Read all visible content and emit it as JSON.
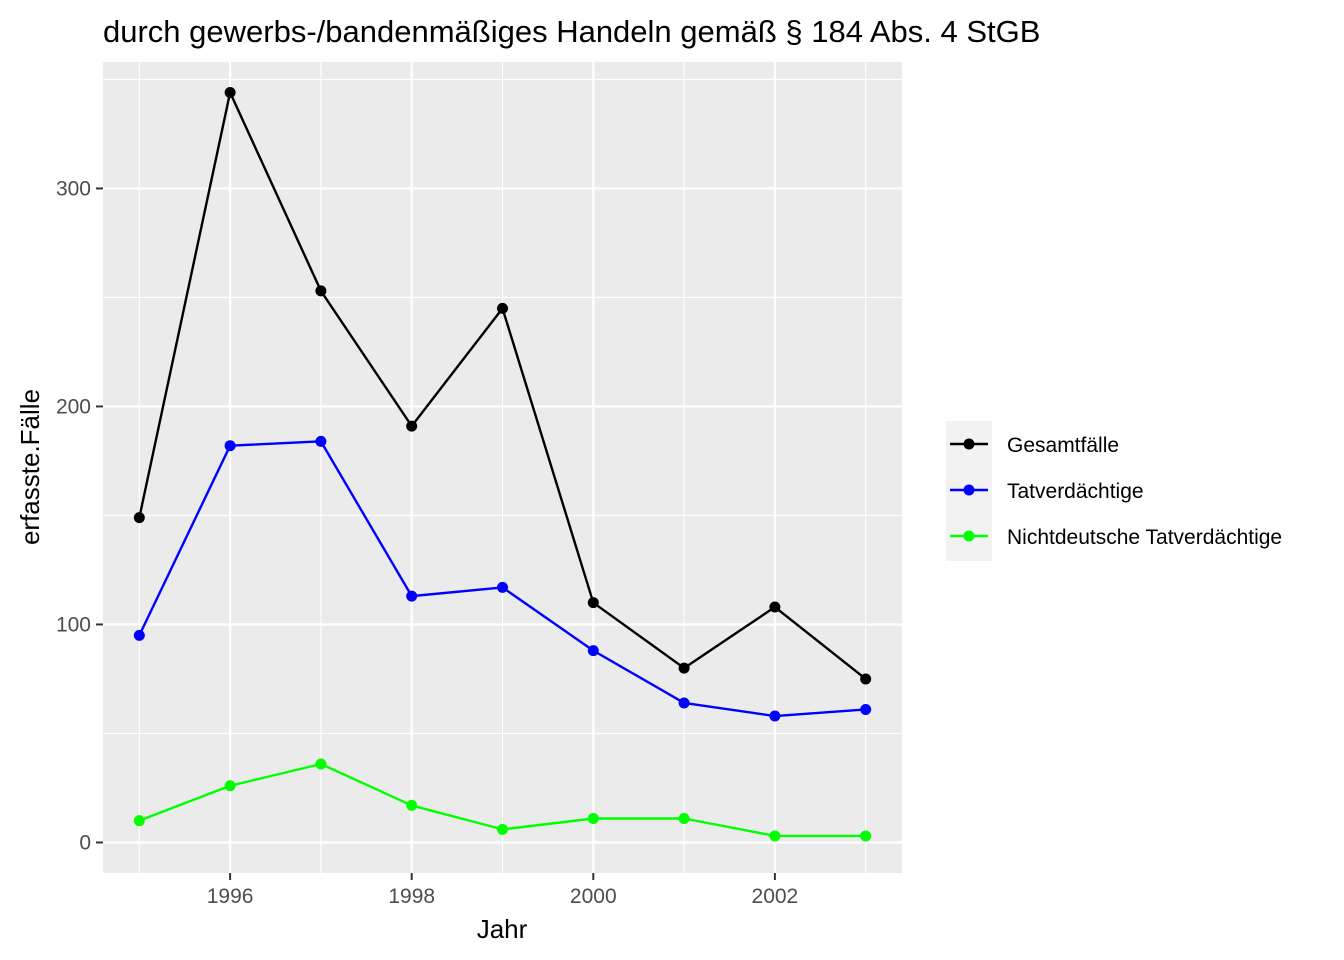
{
  "chart_data": {
    "type": "line",
    "title": "durch gewerbs-/bandenmäßiges Handeln gemäß § 184 Abs. 4 StGB",
    "xlabel": "Jahr",
    "ylabel": "erfasste.Fälle",
    "x": [
      1995,
      1996,
      1997,
      1998,
      1999,
      2000,
      2001,
      2002,
      2003
    ],
    "xlim": [
      1994.6,
      2003.4
    ],
    "ylim": [
      -14,
      358
    ],
    "x_ticks": [
      1996,
      1998,
      2000,
      2002
    ],
    "y_ticks": [
      0,
      100,
      200,
      300
    ],
    "grid": true,
    "legend_position": "right",
    "series": [
      {
        "name": "Gesamtfälle",
        "color": "#000000",
        "values": [
          149,
          344,
          253,
          191,
          245,
          110,
          80,
          108,
          75
        ]
      },
      {
        "name": "Tatverdächtige",
        "color": "#0000ff",
        "values": [
          95,
          182,
          184,
          113,
          117,
          88,
          64,
          58,
          61
        ]
      },
      {
        "name": "Nichtdeutsche Tatverdächtige",
        "color": "#00ff00",
        "values": [
          10,
          26,
          36,
          17,
          6,
          11,
          11,
          3,
          3
        ]
      }
    ]
  }
}
